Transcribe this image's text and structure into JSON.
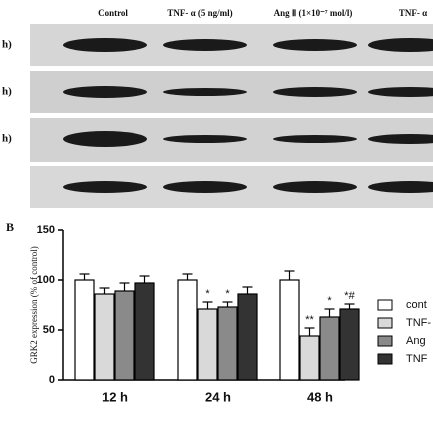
{
  "blot": {
    "columns": [
      "Control",
      "TNF- α (5 ng/ml)",
      "Ang Ⅱ (1×10⁻⁷ mol/l)",
      "TNF- α"
    ],
    "row_labels": [
      "h)",
      "h)",
      "h)"
    ]
  },
  "panel_label": "B",
  "chart_data": {
    "type": "bar",
    "ylabel": "GRK2 expression (% of control)",
    "categories": [
      "12 h",
      "24 h",
      "48 h"
    ],
    "series": [
      {
        "name": "cont",
        "color": "#ffffff",
        "values": [
          100,
          100,
          100
        ],
        "errors": [
          6,
          6,
          9
        ],
        "significance": [
          null,
          null,
          null
        ]
      },
      {
        "name": "TNF-",
        "color": "#d9d9d9",
        "values": [
          86,
          71,
          44
        ],
        "errors": [
          6,
          7,
          8
        ],
        "significance": [
          null,
          "*",
          "**"
        ]
      },
      {
        "name": "Ang",
        "color": "#8a8a8a",
        "values": [
          89,
          73,
          63
        ],
        "errors": [
          8,
          5,
          8
        ],
        "significance": [
          null,
          "*",
          "*"
        ]
      },
      {
        "name": "TNF",
        "color": "#333333",
        "values": [
          97,
          86,
          71
        ],
        "errors": [
          7,
          7,
          5
        ],
        "significance": [
          null,
          null,
          "*#"
        ]
      }
    ],
    "ylim": [
      0,
      150
    ],
    "yticks": [
      0,
      50,
      100,
      150
    ]
  }
}
